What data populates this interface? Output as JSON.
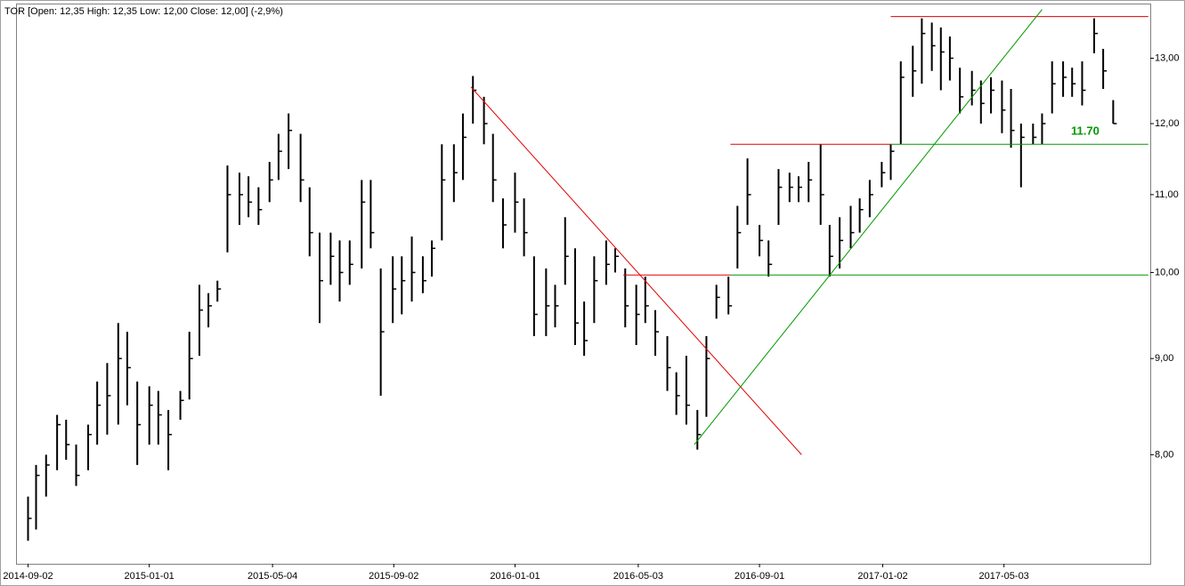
{
  "chart_data": {
    "type": "ohlc",
    "title": "TOR [Open: 12,35  High: 12,35  Low: 12,00  Close: 12,00] (-2,9%)",
    "annotation": "11.70",
    "color": "#000000",
    "log_scale": true,
    "xlim": [
      "2014-08-21",
      "2017-09-26"
    ],
    "xticks": [
      "2014-09-02",
      "2015-01-01",
      "2015-05-04",
      "2015-09-02",
      "2016-01-01",
      "2016-05-03",
      "2016-09-01",
      "2017-01-02",
      "2017-05-03"
    ],
    "ylim": [
      7,
      13.9
    ],
    "yticks": [
      {
        "value": 8,
        "label": "8,00"
      },
      {
        "value": 9,
        "label": "9,00"
      },
      {
        "value": 10,
        "label": "10,00"
      },
      {
        "value": 11,
        "label": "11,00"
      },
      {
        "value": 12,
        "label": "12,00"
      },
      {
        "value": 13,
        "label": "13,00"
      }
    ],
    "x": [
      "2014-09-02",
      "2014-09-10",
      "2014-09-20",
      "2014-10-01",
      "2014-10-10",
      "2014-10-20",
      "2014-11-01",
      "2014-11-10",
      "2014-11-20",
      "2014-12-01",
      "2014-12-10",
      "2014-12-20",
      "2015-01-01",
      "2015-01-10",
      "2015-01-20",
      "2015-02-01",
      "2015-02-10",
      "2015-02-20",
      "2015-03-01",
      "2015-03-10",
      "2015-03-20",
      "2015-04-01",
      "2015-04-10",
      "2015-04-20",
      "2015-05-01",
      "2015-05-10",
      "2015-05-20",
      "2015-06-01",
      "2015-06-10",
      "2015-06-20",
      "2015-07-01",
      "2015-07-10",
      "2015-07-20",
      "2015-08-01",
      "2015-08-10",
      "2015-08-20",
      "2015-09-01",
      "2015-09-10",
      "2015-09-20",
      "2015-10-01",
      "2015-10-10",
      "2015-10-20",
      "2015-11-01",
      "2015-11-10",
      "2015-11-20",
      "2015-12-01",
      "2015-12-10",
      "2015-12-20",
      "2016-01-01",
      "2016-01-10",
      "2016-01-20",
      "2016-02-01",
      "2016-02-10",
      "2016-02-20",
      "2016-03-01",
      "2016-03-10",
      "2016-03-20",
      "2016-04-01",
      "2016-04-10",
      "2016-04-20",
      "2016-05-01",
      "2016-05-10",
      "2016-05-20",
      "2016-06-01",
      "2016-06-10",
      "2016-06-20",
      "2016-07-01",
      "2016-07-10",
      "2016-07-20",
      "2016-08-01",
      "2016-08-10",
      "2016-08-20",
      "2016-09-01",
      "2016-09-10",
      "2016-09-20",
      "2016-10-01",
      "2016-10-10",
      "2016-10-20",
      "2016-11-01",
      "2016-11-10",
      "2016-11-20",
      "2016-12-01",
      "2016-12-10",
      "2016-12-20",
      "2017-01-01",
      "2017-01-10",
      "2017-01-20",
      "2017-02-01",
      "2017-02-10",
      "2017-02-20",
      "2017-03-01",
      "2017-03-10",
      "2017-03-20",
      "2017-04-01",
      "2017-04-10",
      "2017-04-20",
      "2017-05-01",
      "2017-05-10",
      "2017-05-20",
      "2017-06-01",
      "2017-06-10",
      "2017-06-20",
      "2017-07-01",
      "2017-07-10",
      "2017-07-20",
      "2017-08-01",
      "2017-08-10",
      "2017-08-20"
    ],
    "high": [
      7.6,
      7.9,
      8.0,
      8.4,
      8.35,
      8.1,
      8.3,
      8.75,
      8.95,
      9.4,
      9.3,
      8.75,
      8.7,
      8.65,
      8.45,
      8.65,
      9.3,
      9.85,
      9.75,
      9.9,
      11.4,
      11.3,
      11.25,
      11.1,
      11.45,
      11.85,
      12.15,
      11.85,
      11.1,
      10.5,
      10.5,
      10.4,
      10.4,
      11.2,
      11.2,
      10.05,
      10.2,
      10.2,
      10.45,
      10.2,
      10.4,
      11.7,
      11.7,
      12.15,
      12.72,
      12.4,
      11.85,
      10.95,
      11.3,
      10.95,
      10.2,
      10.05,
      9.85,
      10.7,
      10.3,
      9.65,
      10.2,
      10.4,
      10.3,
      10.05,
      9.85,
      9.95,
      9.55,
      9.25,
      8.85,
      9.03,
      8.45,
      9.25,
      9.85,
      9.95,
      10.85,
      11.5,
      10.6,
      10.4,
      11.35,
      11.3,
      11.25,
      11.45,
      11.7,
      10.6,
      10.7,
      10.85,
      10.95,
      11.2,
      11.45,
      11.7,
      12.95,
      13.2,
      13.65,
      13.58,
      13.5,
      13.35,
      12.85,
      12.8,
      12.65,
      12.7,
      12.65,
      12.52,
      12.0,
      12.0,
      12.15,
      12.95,
      12.95,
      12.85,
      12.95,
      13.65,
      13.15,
      12.35
    ],
    "low": [
      7.2,
      7.3,
      7.6,
      7.85,
      7.95,
      7.7,
      7.85,
      8.1,
      8.2,
      8.3,
      8.5,
      7.9,
      8.1,
      8.1,
      7.85,
      8.35,
      8.56,
      9.03,
      9.35,
      9.65,
      10.25,
      10.6,
      10.7,
      10.6,
      10.9,
      11.2,
      11.35,
      10.9,
      10.2,
      9.4,
      9.85,
      9.65,
      9.85,
      10.05,
      10.3,
      8.6,
      9.4,
      9.5,
      9.65,
      9.75,
      9.95,
      10.4,
      10.9,
      11.2,
      12.0,
      11.7,
      10.9,
      10.3,
      10.5,
      10.2,
      9.25,
      9.25,
      9.35,
      9.85,
      9.15,
      9.03,
      9.4,
      9.85,
      10.0,
      9.35,
      9.15,
      9.4,
      9.03,
      8.65,
      8.4,
      8.3,
      8.05,
      8.38,
      9.45,
      9.5,
      10.05,
      10.6,
      10.2,
      9.95,
      10.6,
      10.9,
      10.9,
      10.9,
      10.6,
      9.95,
      10.05,
      10.3,
      10.5,
      10.7,
      11.1,
      11.2,
      11.7,
      12.4,
      12.6,
      12.8,
      12.5,
      12.65,
      12.15,
      12.27,
      12.0,
      12.15,
      11.86,
      11.65,
      11.1,
      11.7,
      11.7,
      12.15,
      12.4,
      12.4,
      12.27,
      13.08,
      12.52,
      12.0
    ],
    "close": [
      7.4,
      7.8,
      7.9,
      8.3,
      8.1,
      7.8,
      8.2,
      8.5,
      8.6,
      9.0,
      8.9,
      8.3,
      8.5,
      8.4,
      8.2,
      8.55,
      9.0,
      9.55,
      9.6,
      9.8,
      11.0,
      11.0,
      10.9,
      10.8,
      11.2,
      11.6,
      11.9,
      11.2,
      10.5,
      9.9,
      10.2,
      10.0,
      10.1,
      10.9,
      10.5,
      9.3,
      9.8,
      9.9,
      10.0,
      9.9,
      10.3,
      11.2,
      11.3,
      11.8,
      12.5,
      12.0,
      11.2,
      10.6,
      10.9,
      10.5,
      9.5,
      9.6,
      9.6,
      10.2,
      9.4,
      9.2,
      9.9,
      10.1,
      10.2,
      9.6,
      9.5,
      9.6,
      9.3,
      8.9,
      8.6,
      8.5,
      8.2,
      9.0,
      9.7,
      9.6,
      10.5,
      11.0,
      10.4,
      10.1,
      11.1,
      11.1,
      11.1,
      11.2,
      11.0,
      10.2,
      10.4,
      10.5,
      10.8,
      11.0,
      11.3,
      11.6,
      12.7,
      12.8,
      13.4,
      13.2,
      13.1,
      13.0,
      12.4,
      12.5,
      12.3,
      12.5,
      12.2,
      11.9,
      11.8,
      11.8,
      12.0,
      12.6,
      12.7,
      12.6,
      12.5,
      13.4,
      12.8,
      12.0
    ],
    "lines": [
      {
        "color": "#e00000",
        "x": [
          "2015-11-18",
          "2016-10-13"
        ],
        "y": [
          12.55,
          8.0
        ]
      },
      {
        "color": "#e00000",
        "x": [
          "2016-04-18",
          "2016-08-03"
        ],
        "y": [
          9.97,
          9.97
        ]
      },
      {
        "color": "#009900",
        "x": [
          "2016-08-03",
          "2017-09-24"
        ],
        "y": [
          9.97,
          9.97
        ]
      },
      {
        "color": "#e00000",
        "x": [
          "2016-08-03",
          "2017-01-10"
        ],
        "y": [
          11.7,
          11.7
        ]
      },
      {
        "color": "#009900",
        "x": [
          "2017-01-10",
          "2017-09-24"
        ],
        "y": [
          11.7,
          11.7
        ]
      },
      {
        "color": "#e00000",
        "x": [
          "2017-01-10",
          "2017-09-24"
        ],
        "y": [
          13.68,
          13.68
        ]
      },
      {
        "color": "#009900",
        "x": [
          "2016-06-28",
          "2017-06-10"
        ],
        "y": [
          8.1,
          13.8
        ]
      }
    ]
  }
}
